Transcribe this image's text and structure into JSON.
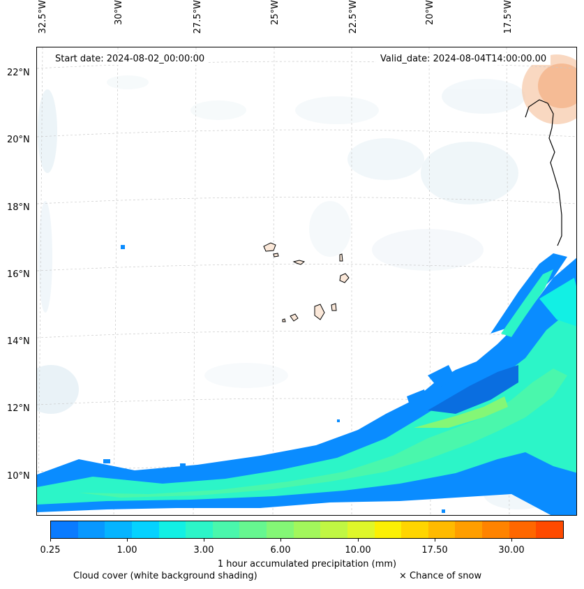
{
  "map": {
    "lon_labels": [
      "32.5°W",
      "30°W",
      "27.5°W",
      "25°W",
      "22.5°W",
      "20°W",
      "17.5°W"
    ],
    "lat_labels": [
      "22°N",
      "20°N",
      "18°N",
      "16°N",
      "14°N",
      "12°N",
      "10°N"
    ],
    "start_date": "Start date: 2024-08-02_00:00:00",
    "valid_date": "Valid_date: 2024-08-04T14:00:00.00"
  },
  "colorbar": {
    "colors": [
      "#0a7bff",
      "#0898ff",
      "#05b4ff",
      "#05d2ff",
      "#12f0e4",
      "#2cf5c8",
      "#4af7ac",
      "#66f790",
      "#84f776",
      "#a2f75c",
      "#c0f743",
      "#dff72a",
      "#fbf004",
      "#ffd500",
      "#ffba00",
      "#ff9e00",
      "#ff8300",
      "#ff6700",
      "#ff4a00"
    ],
    "tick_labels": [
      "0.25",
      "1.00",
      "3.00",
      "6.00",
      "10.00",
      "17.50",
      "30.00"
    ],
    "label": "1 hour accumulated precipitation (mm)"
  },
  "legend": {
    "cloud_note": "Cloud cover (white background shading)",
    "snow_note": "× Chance of snow"
  }
}
